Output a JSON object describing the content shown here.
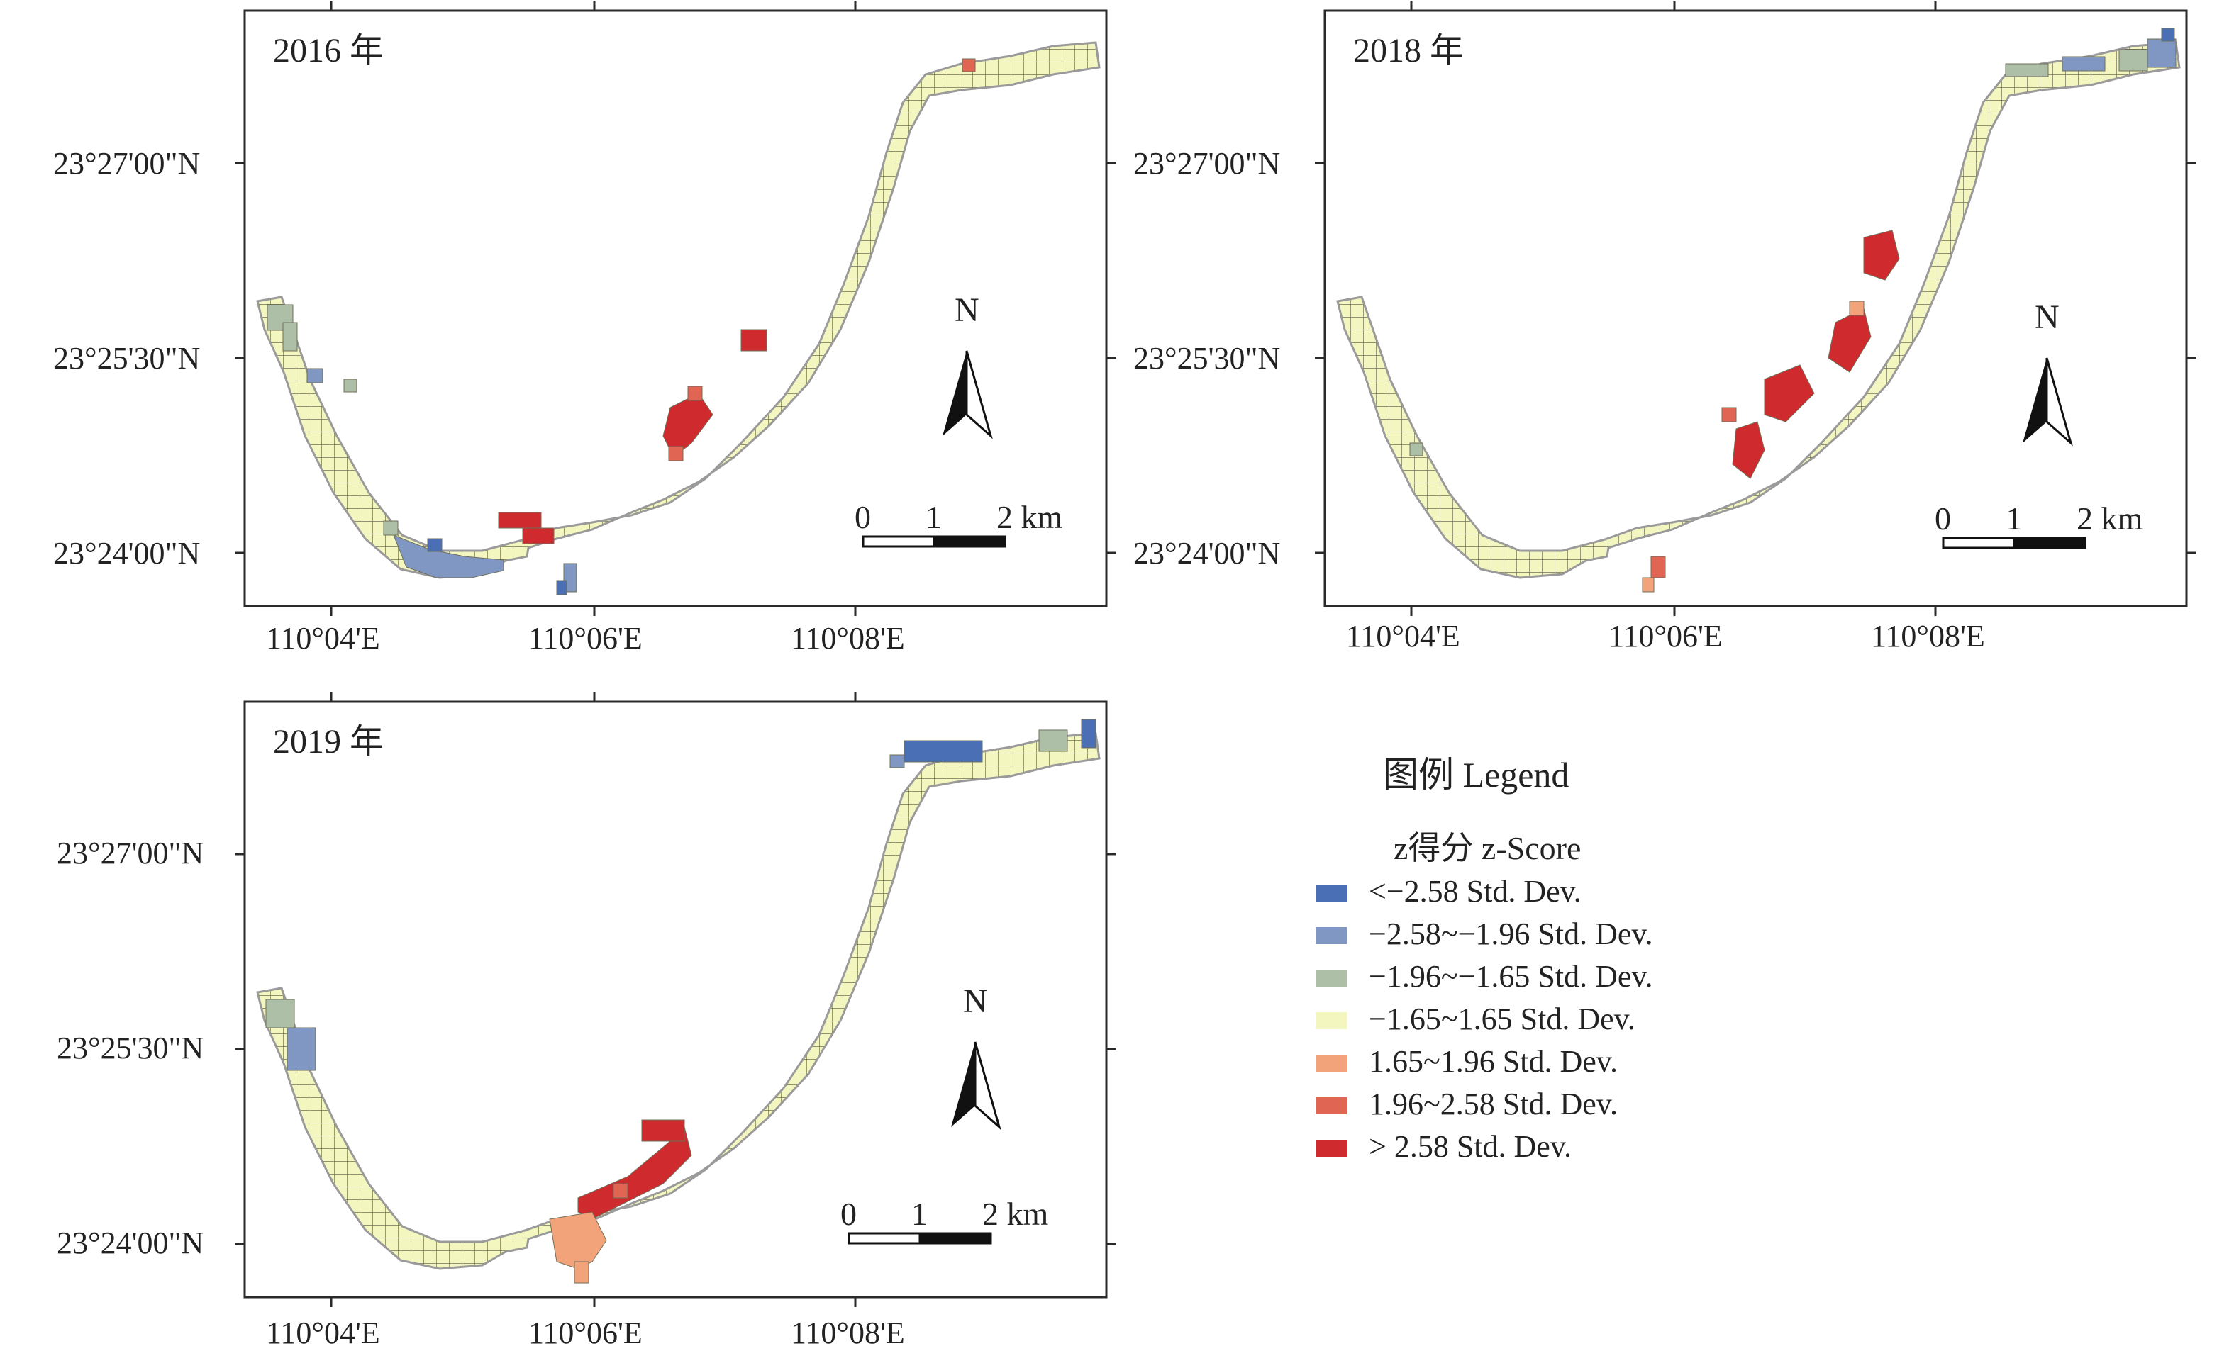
{
  "panels": [
    {
      "year_label": "2016 年"
    },
    {
      "year_label": "2018 年"
    },
    {
      "year_label": "2019 年"
    }
  ],
  "axes": {
    "lat_labels": [
      "23°27'00\"N",
      "23°25'30\"N",
      "23°24'00\"N"
    ],
    "lon_labels": [
      "110°04'E",
      "110°06'E",
      "110°08'E"
    ]
  },
  "north_arrow": {
    "label": "N"
  },
  "scale_bar": {
    "labels": [
      "0",
      "1",
      "2 km"
    ]
  },
  "legend": {
    "title": "图例 Legend",
    "subtitle": "z得分 z-Score",
    "items": [
      {
        "label": "<−2.58 Std. Dev.",
        "color": "#4a6fb5"
      },
      {
        "label": "−2.58~−1.96 Std. Dev.",
        "color": "#7f97c2"
      },
      {
        "label": "−1.96~−1.65 Std. Dev.",
        "color": "#aebfa8"
      },
      {
        "label": "−1.65~1.65 Std. Dev.",
        "color": "#f4f6bf"
      },
      {
        "label": "1.65~1.96 Std. Dev.",
        "color": "#f3a37a"
      },
      {
        "label": "1.96~2.58 Std. Dev.",
        "color": "#e06552"
      },
      {
        "label": "> 2.58 Std. Dev.",
        "color": "#cf2a2e"
      }
    ]
  },
  "colors": {
    "river_fill": "#f4f6bf",
    "river_outline": "#9a9a9a",
    "grid_line": "#6f6f5a"
  }
}
